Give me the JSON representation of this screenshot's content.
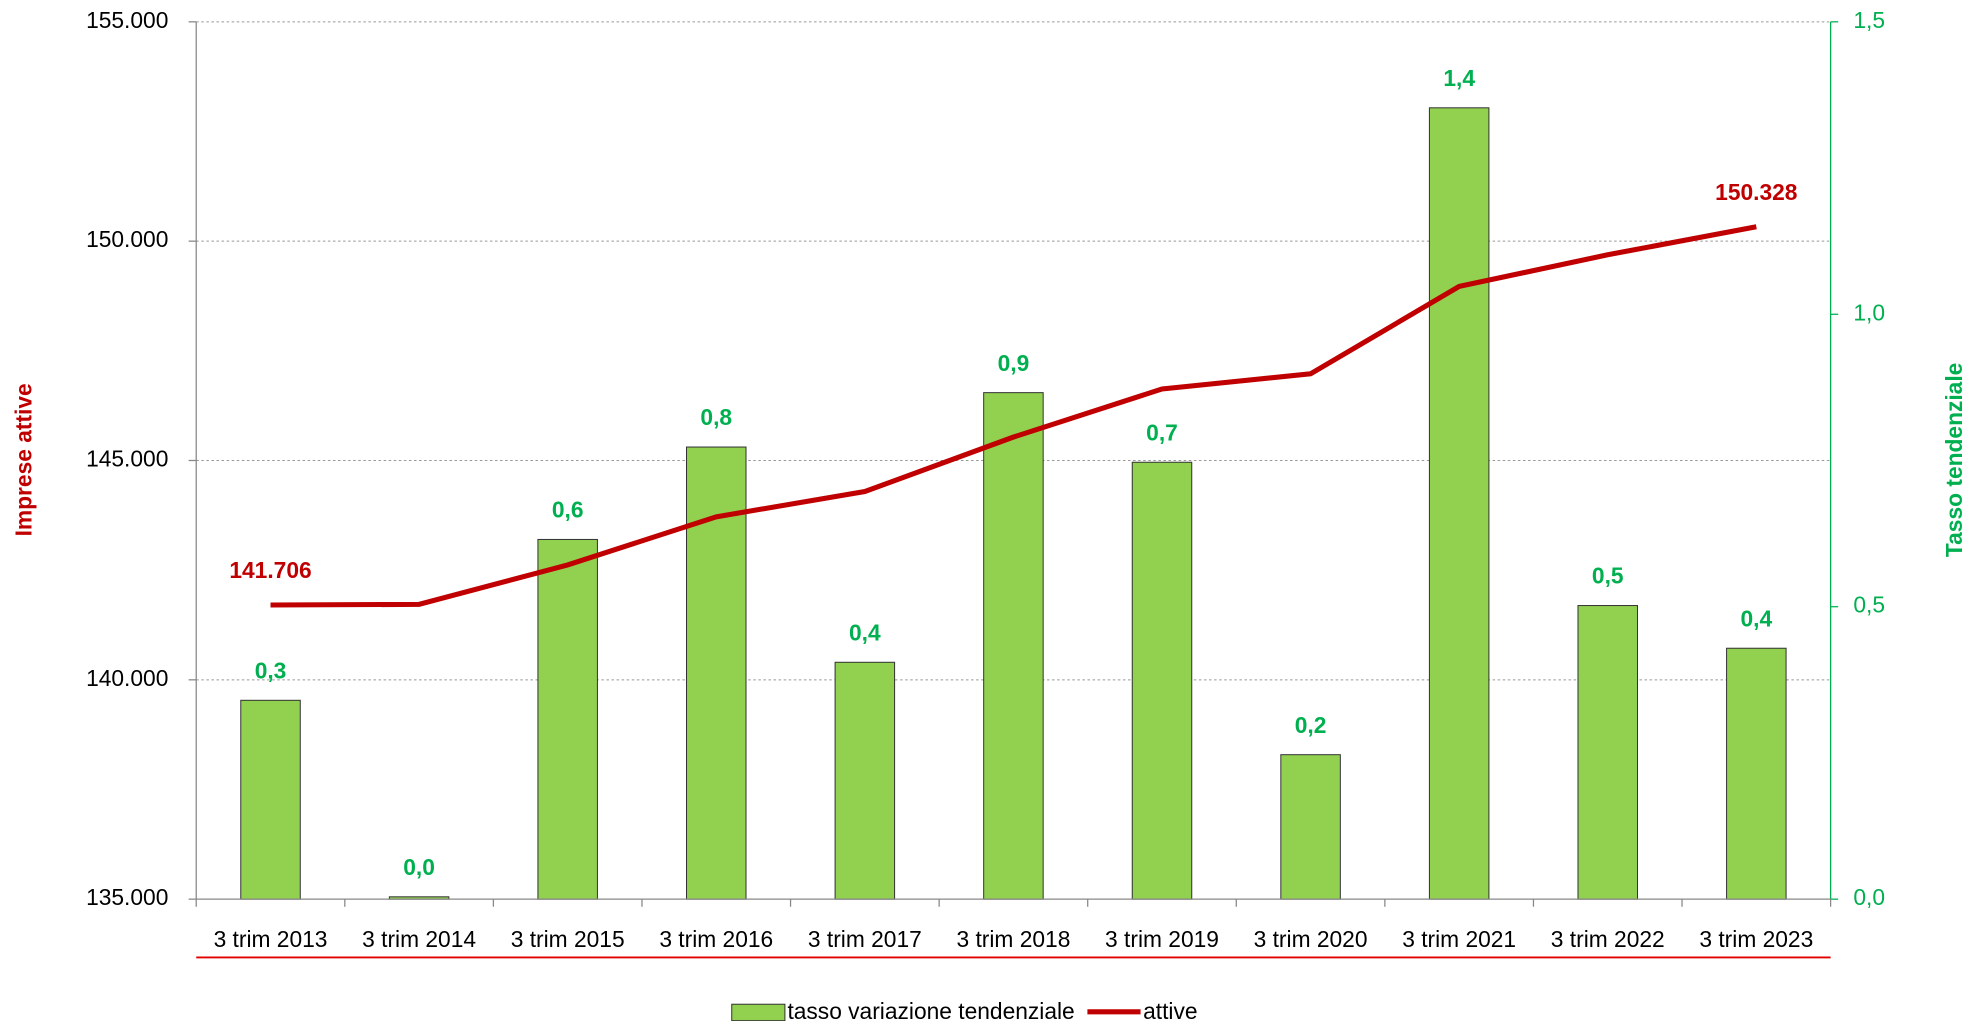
{
  "chart_data": {
    "type": "bar-line",
    "y_label": "Imprese attive",
    "y2_label": "Tasso tendenziale",
    "categories": [
      "3 trim 2013",
      "3 trim 2014",
      "3 trim 2015",
      "3 trim 2016",
      "3 trim 2017",
      "3 trim 2018",
      "3 trim 2019",
      "3 trim 2020",
      "3 trim 2021",
      "3 trim 2022",
      "3 trim 2023"
    ],
    "series": [
      {
        "name": "tasso variazione tendenziale",
        "type": "bar",
        "axis": "y2",
        "color": "#92d050",
        "label_color": "#00b050",
        "values": [
          0.34,
          0.004,
          0.615,
          0.773,
          0.405,
          0.866,
          0.747,
          0.247,
          1.353,
          0.502,
          0.429
        ],
        "value_labels": [
          "0,3",
          "0,0",
          "0,6",
          "0,8",
          "0,4",
          "0,9",
          "0,7",
          "0,2",
          "1,4",
          "0,5",
          "0,4"
        ]
      },
      {
        "name": "attive",
        "type": "line",
        "axis": "y",
        "color": "#c00000",
        "values": [
          141706,
          141720,
          142619,
          143716,
          144293,
          145534,
          146630,
          146977,
          148968,
          149690,
          150328
        ],
        "value_labels": [
          "141.706",
          null,
          null,
          null,
          null,
          null,
          null,
          null,
          null,
          null,
          "150.328"
        ]
      }
    ],
    "ylim": [
      135000,
      155000
    ],
    "yticks": [
      {
        "value": 135000,
        "label": "135.000"
      },
      {
        "value": 140000,
        "label": "140.000"
      },
      {
        "value": 145000,
        "label": "145.000"
      },
      {
        "value": 150000,
        "label": "150.000"
      },
      {
        "value": 155000,
        "label": "155.000"
      }
    ],
    "y2lim": [
      0,
      1.5
    ],
    "y2ticks": [
      {
        "value": 0,
        "label": "0,0"
      },
      {
        "value": 0.5,
        "label": "0,5"
      },
      {
        "value": 1,
        "label": "1,0"
      },
      {
        "value": 1.5,
        "label": "1,5"
      }
    ],
    "grid": true,
    "legend": "bottom"
  }
}
